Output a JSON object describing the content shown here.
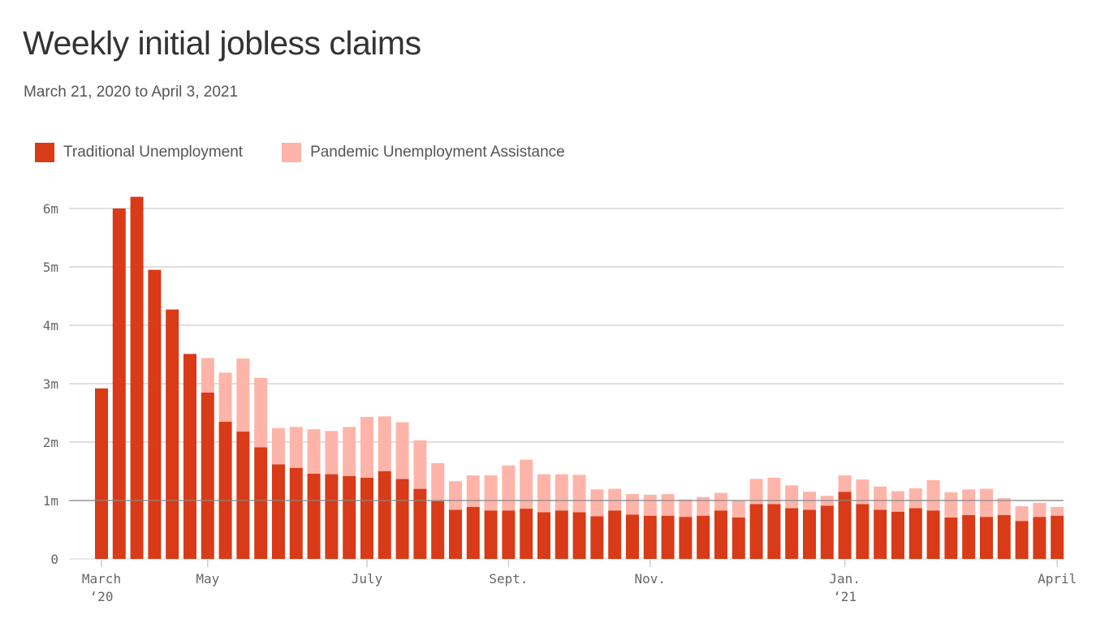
{
  "title": "Weekly initial jobless claims",
  "subtitle": "March 21, 2020 to April 3, 2021",
  "colors": {
    "traditional": "#d93a17",
    "pua": "#ffb4a9"
  },
  "chart_data": {
    "type": "bar",
    "stacked": true,
    "title": "Weekly initial jobless claims",
    "subtitle": "March 21, 2020 to April 3, 2021",
    "legend_position": "top-left",
    "grid": true,
    "ylim": [
      0,
      6.2
    ],
    "y_unit": "millions",
    "y_ticks": [
      {
        "value": 0,
        "label": "0"
      },
      {
        "value": 1,
        "label": "1m"
      },
      {
        "value": 2,
        "label": "2m"
      },
      {
        "value": 3,
        "label": "3m"
      },
      {
        "value": 4,
        "label": "4m"
      },
      {
        "value": 5,
        "label": "5m"
      },
      {
        "value": 6,
        "label": "6m"
      }
    ],
    "x_ticks": [
      {
        "line1": "March",
        "line2": "‘20"
      },
      {
        "line1": "May",
        "line2": ""
      },
      {
        "line1": "July",
        "line2": ""
      },
      {
        "line1": "Sept.",
        "line2": ""
      },
      {
        "line1": "Nov.",
        "line2": ""
      },
      {
        "line1": "Jan.",
        "line2": "‘21"
      },
      {
        "line1": "April",
        "line2": ""
      }
    ],
    "series": [
      {
        "name": "Traditional Unemployment",
        "color": "#d93a17",
        "values": [
          2.92,
          6.0,
          6.2,
          4.95,
          4.27,
          3.51,
          2.85,
          2.35,
          2.18,
          1.91,
          1.62,
          1.56,
          1.46,
          1.45,
          1.42,
          1.39,
          1.5,
          1.37,
          1.2,
          0.99,
          0.84,
          0.89,
          0.83,
          0.83,
          0.86,
          0.8,
          0.83,
          0.8,
          0.73,
          0.83,
          0.76,
          0.74,
          0.74,
          0.72,
          0.74,
          0.83,
          0.71,
          0.94,
          0.94,
          0.87,
          0.84,
          0.91,
          1.15,
          0.94,
          0.84,
          0.81,
          0.87,
          0.83,
          0.71,
          0.75,
          0.72,
          0.75,
          0.65,
          0.72,
          0.74
        ]
      },
      {
        "name": "Pandemic Unemployment Assistance",
        "color": "#ffb4a9",
        "values": [
          0,
          0,
          0,
          0,
          0,
          0,
          0.59,
          0.84,
          1.25,
          1.19,
          0.62,
          0.7,
          0.76,
          0.74,
          0.84,
          1.04,
          0.94,
          0.97,
          0.83,
          0.65,
          0.49,
          0.54,
          0.6,
          0.77,
          0.84,
          0.65,
          0.62,
          0.64,
          0.46,
          0.37,
          0.35,
          0.36,
          0.37,
          0.3,
          0.32,
          0.3,
          0.29,
          0.43,
          0.45,
          0.39,
          0.31,
          0.17,
          0.28,
          0.42,
          0.4,
          0.35,
          0.34,
          0.52,
          0.43,
          0.44,
          0.48,
          0.29,
          0.25,
          0.24,
          0.15
        ]
      }
    ]
  }
}
